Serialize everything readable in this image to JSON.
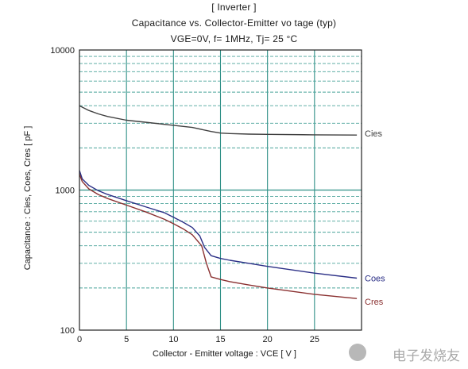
{
  "chart_data": {
    "type": "line",
    "title_lines": [
      "[ Inverter ]",
      "Capacitance  vs.  Collector-Emitter vo tage  (typ)",
      "VGE=0V,  f= 1MHz,  Tj= 25 °C"
    ],
    "xlabel": "Collector - Emitter voltage  :  VCE  [ V ]",
    "ylabel": "Capacitance : Cies, Coes, Cres [ pF ]",
    "xlim": [
      0,
      30
    ],
    "ylim": [
      100,
      10000
    ],
    "yscale": "log",
    "x_ticks": [
      "0",
      "5",
      "10",
      "15",
      "20",
      "25"
    ],
    "y_ticks": [
      "100",
      "1000",
      "10000"
    ],
    "grid": true,
    "series": [
      {
        "name": "Cies",
        "color": "#404040",
        "x": [
          0,
          0.5,
          1,
          2,
          3,
          5,
          7,
          10,
          12,
          14,
          15,
          16,
          18,
          20,
          25,
          29.5
        ],
        "values": [
          4000,
          3850,
          3700,
          3500,
          3350,
          3150,
          3050,
          2900,
          2800,
          2620,
          2550,
          2530,
          2510,
          2500,
          2480,
          2470
        ]
      },
      {
        "name": "Coes",
        "color": "#2b2f86",
        "x": [
          0,
          0.3,
          1,
          2,
          3,
          5,
          7,
          9,
          10,
          11,
          12,
          12.8,
          13.3,
          14,
          15,
          16,
          18,
          20,
          25,
          29.5
        ],
        "values": [
          1380,
          1200,
          1080,
          990,
          930,
          840,
          760,
          690,
          640,
          590,
          540,
          470,
          390,
          340,
          325,
          315,
          300,
          285,
          255,
          235
        ]
      },
      {
        "name": "Cres",
        "color": "#8a3030",
        "x": [
          0,
          0.3,
          1,
          2,
          3,
          5,
          7,
          9,
          10,
          11,
          12,
          13,
          13.5,
          14,
          15,
          16,
          18,
          20,
          25,
          29.5
        ],
        "values": [
          1300,
          1150,
          1020,
          930,
          870,
          780,
          700,
          620,
          575,
          530,
          480,
          400,
          300,
          240,
          230,
          222,
          210,
          200,
          180,
          168
        ]
      }
    ]
  },
  "watermark": {
    "text": "电子发烧友"
  }
}
